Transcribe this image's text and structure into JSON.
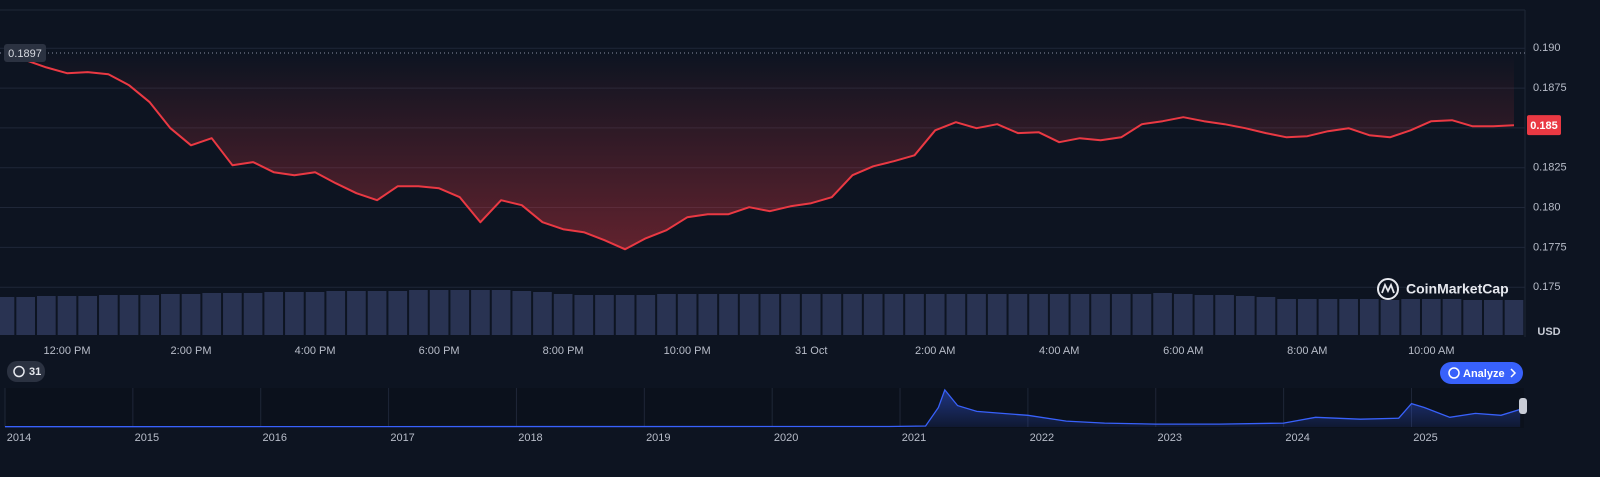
{
  "ui": {
    "brand": "CoinMarketCap",
    "currency": "USD",
    "history_badge": "31",
    "analyze": "Analyze"
  },
  "chart_data": [
    {
      "type": "line",
      "color": "#ea3943",
      "values": [
        0.1895,
        0.18925,
        0.1888,
        0.18843,
        0.1885,
        0.18837,
        0.18768,
        0.18661,
        0.18498,
        0.18391,
        0.18435,
        0.18266,
        0.18285,
        0.18222,
        0.18203,
        0.18222,
        0.18153,
        0.1809,
        0.18046,
        0.18134,
        0.18134,
        0.18121,
        0.18065,
        0.17908,
        0.18046,
        0.18015,
        0.17908,
        0.17864,
        0.17845,
        0.17795,
        0.17738,
        0.17807,
        0.17858,
        0.17939,
        0.17958,
        0.17958,
        0.18002,
        0.17977,
        0.18008,
        0.18027,
        0.18065,
        0.18203,
        0.18259,
        0.18291,
        0.18328,
        0.18485,
        0.18536,
        0.18498,
        0.18523,
        0.18467,
        0.18473,
        0.1841,
        0.18435,
        0.18423,
        0.18441,
        0.18523,
        0.18542,
        0.18567,
        0.18542,
        0.18523,
        0.18498,
        0.18467,
        0.18441,
        0.18448,
        0.18479,
        0.18498,
        0.18454,
        0.18441,
        0.18485,
        0.18542,
        0.18548,
        0.1851,
        0.1851,
        0.18517
      ],
      "volume": [
        38,
        38,
        39,
        39,
        39,
        40,
        40,
        40,
        41,
        41,
        42,
        42,
        42,
        43,
        43,
        43,
        44,
        44,
        44,
        44,
        45,
        45,
        45,
        45,
        45,
        44,
        43,
        41,
        40,
        40,
        40,
        40,
        41,
        41,
        41,
        41,
        41,
        41,
        41,
        41,
        41,
        41,
        41,
        41,
        41,
        41,
        41,
        41,
        41,
        41,
        41,
        41,
        41,
        41,
        41,
        41,
        42,
        41,
        40,
        40,
        39,
        38,
        36,
        36,
        36,
        36,
        36,
        35,
        36,
        36,
        36,
        35,
        35,
        35
      ],
      "xlim": [
        0,
        73
      ],
      "xticks": [
        {
          "value": 3,
          "label": "12:00 PM"
        },
        {
          "value": 9,
          "label": "2:00 PM"
        },
        {
          "value": 15,
          "label": "4:00 PM"
        },
        {
          "value": 21,
          "label": "6:00 PM"
        },
        {
          "value": 27,
          "label": "8:00 PM"
        },
        {
          "value": 33,
          "label": "10:00 PM"
        },
        {
          "value": 39,
          "label": "31 Oct"
        },
        {
          "value": 45,
          "label": "2:00 AM"
        },
        {
          "value": 51,
          "label": "4:00 AM"
        },
        {
          "value": 57,
          "label": "6:00 AM"
        },
        {
          "value": 63,
          "label": "8:00 AM"
        },
        {
          "value": 69,
          "label": "10:00 AM"
        }
      ],
      "ylim": [
        0.172,
        0.1924
      ],
      "yticks": [
        {
          "value": 0.19,
          "label": "0.190"
        },
        0.1875,
        0.185,
        0.1825,
        {
          "value": 0.18,
          "label": "0.180"
        },
        0.1775,
        0.175
      ],
      "open_price": 0.1897,
      "current_price": {
        "value": 0.18517,
        "label": "0.185"
      },
      "grid": true
    },
    {
      "type": "area",
      "color": "#3861fb",
      "x": [
        2014,
        2020.9,
        2021.2,
        2021.3,
        2021.35,
        2021.45,
        2021.6,
        2021.8,
        2022.0,
        2022.3,
        2022.6,
        2023.0,
        2023.5,
        2024.0,
        2024.25,
        2024.6,
        2024.9,
        2025.0,
        2025.1,
        2025.3,
        2025.5,
        2025.7,
        2025.85
      ],
      "values": [
        0.3,
        0.5,
        1,
        20,
        38,
        22,
        16,
        14,
        12,
        6,
        4,
        3,
        3,
        4,
        10,
        8,
        9,
        24,
        20,
        10,
        14,
        12,
        18
      ],
      "xlim": [
        2014,
        2025.88
      ],
      "ylim": [
        0,
        40
      ],
      "xticks": [
        2014,
        2015,
        2016,
        2017,
        2018,
        2019,
        2020,
        2021,
        2022,
        2023,
        2024,
        2025
      ]
    }
  ]
}
